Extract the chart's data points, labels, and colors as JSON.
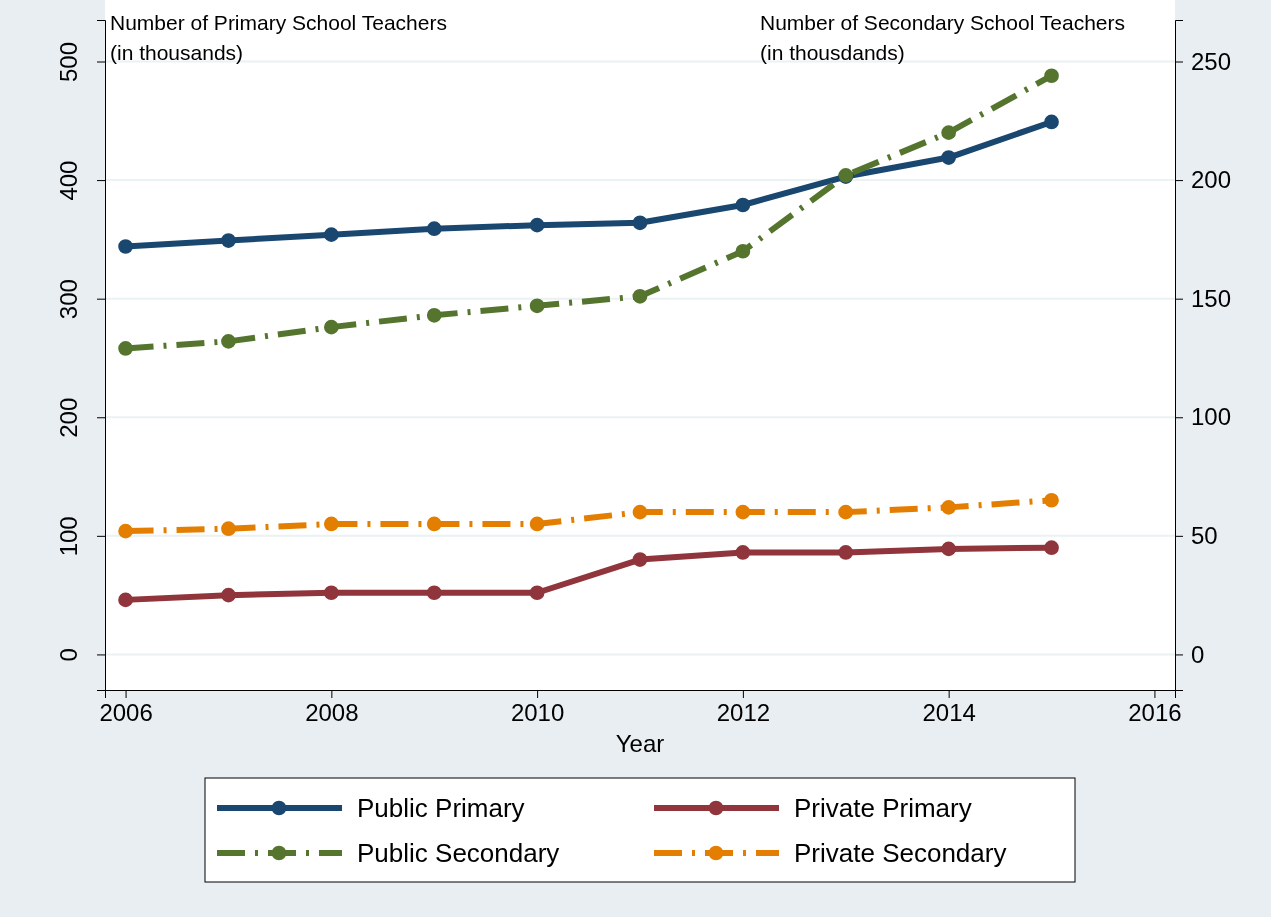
{
  "chart_data": {
    "type": "line",
    "xlabel": "Year",
    "ylabel": "Number of Primary School Teachers\n(in thousands)",
    "y2label": "Number of Secondary School Teachers\n(in thousdands)",
    "x": [
      2006,
      2007,
      2008,
      2009,
      2010,
      2011,
      2012,
      2013,
      2014,
      2015
    ],
    "xlim": [
      2005.8,
      2016.2
    ],
    "xticks": [
      2006,
      2008,
      2010,
      2012,
      2014,
      2016
    ],
    "ylim": [
      -30,
      535
    ],
    "yticks": [
      0,
      100,
      200,
      300,
      400,
      500
    ],
    "y2lim": [
      -15,
      267.5
    ],
    "y2ticks": [
      0,
      50,
      100,
      150,
      200,
      250
    ],
    "grid": "y",
    "legend": "bottom",
    "marker": "circle",
    "series": [
      {
        "name": "Public Primary",
        "color": "#1a476f",
        "line_style": "solid",
        "values": [
          344,
          349,
          354,
          359,
          362,
          364,
          379,
          403,
          419,
          449
        ]
      },
      {
        "name": "Private Primary",
        "color": "#90353b",
        "line_style": "solid",
        "values": [
          46,
          50,
          52,
          52,
          52,
          80,
          86,
          86,
          89,
          90
        ]
      },
      {
        "name": "Public Secondary",
        "color": "#55752f",
        "line_style": "dashed",
        "axis": "y2",
        "values": [
          129,
          132,
          138,
          143,
          147,
          151,
          170,
          202,
          220,
          244
        ]
      },
      {
        "name": "Private Secondary",
        "color": "#e37e00",
        "line_style": "dashed",
        "axis": "y2",
        "values": [
          52,
          53,
          55,
          55,
          55,
          60,
          60,
          60,
          62,
          65
        ]
      }
    ]
  }
}
